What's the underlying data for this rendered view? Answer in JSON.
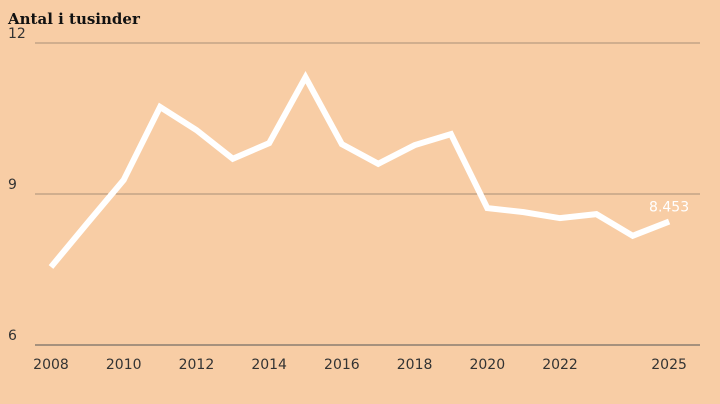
{
  "chart_data": {
    "type": "line",
    "title": "Antal i tusinder",
    "x": [
      2008,
      2009,
      2010,
      2011,
      2012,
      2013,
      2014,
      2015,
      2016,
      2017,
      2018,
      2019,
      2020,
      2021,
      2022,
      2023,
      2024,
      2025
    ],
    "series": [
      {
        "color": "#ffffff",
        "values": [
          7.55,
          8.42,
          9.28,
          10.73,
          10.27,
          9.7,
          10.01,
          11.32,
          9.99,
          9.6,
          9.97,
          10.19,
          8.72,
          8.64,
          8.52,
          8.6,
          8.17,
          8.453
        ],
        "value_labels": [
          null,
          null,
          null,
          null,
          null,
          null,
          null,
          null,
          null,
          null,
          null,
          null,
          null,
          null,
          null,
          null,
          null,
          "8.453"
        ]
      }
    ],
    "xlim": [
      2007.56,
      2025.85
    ],
    "xticks": [
      2008,
      2010,
      2012,
      2014,
      2016,
      2018,
      2020,
      2022,
      2025
    ],
    "ylim": [
      6,
      12
    ],
    "yticks": [
      6,
      9,
      12
    ],
    "grid": true
  }
}
